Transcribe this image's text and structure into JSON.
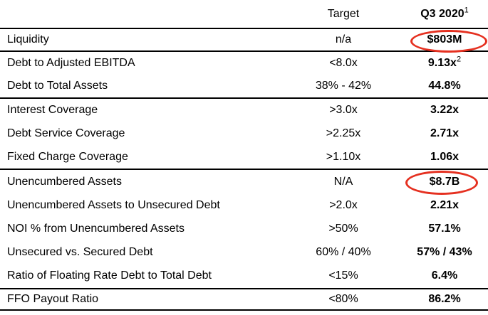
{
  "table": {
    "highlight_color": "#e53020",
    "columns": {
      "metric_header": "",
      "target_header": "Target",
      "period_header": "Q3 2020",
      "period_header_sup": "1"
    },
    "groups": [
      {
        "rows": [
          {
            "label": "Liquidity",
            "target": "n/a",
            "value": "$803M",
            "circled": true
          }
        ]
      },
      {
        "rows": [
          {
            "label": "Debt to Adjusted EBITDA",
            "target": "<8.0x",
            "value": "9.13x",
            "value_sup": "2"
          },
          {
            "label": "Debt to Total Assets",
            "target": "38% - 42%",
            "value": "44.8%"
          }
        ]
      },
      {
        "rows": [
          {
            "label": "Interest Coverage",
            "target": ">3.0x",
            "value": "3.22x"
          },
          {
            "label": "Debt Service Coverage",
            "target": ">2.25x",
            "value": "2.71x"
          },
          {
            "label": "Fixed Charge Coverage",
            "target": ">1.10x",
            "value": "1.06x"
          }
        ]
      },
      {
        "rows": [
          {
            "label": "Unencumbered Assets",
            "target": "N/A",
            "value": "$8.7B",
            "circled": true
          },
          {
            "label": "Unencumbered Assets to Unsecured Debt",
            "target": ">2.0x",
            "value": "2.21x"
          },
          {
            "label": "NOI % from Unencumbered Assets",
            "target": ">50%",
            "value": "57.1%"
          },
          {
            "label": "Unsecured vs. Secured Debt",
            "target": "60% / 40%",
            "value": "57% / 43%"
          },
          {
            "label": "Ratio of Floating Rate Debt to Total Debt",
            "target": "<15%",
            "value": "6.4%"
          }
        ]
      },
      {
        "rows": [
          {
            "label": "FFO Payout Ratio",
            "target": "<80%",
            "value": "86.2%"
          }
        ]
      }
    ]
  }
}
